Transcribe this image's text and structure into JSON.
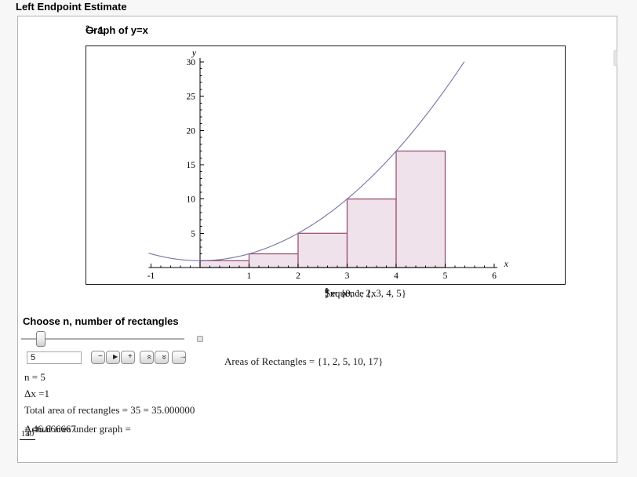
{
  "page_title": "Left Endpoint Estimate",
  "graph": {
    "title": {
      "prefix": "Graph of y=x",
      "sup": "2",
      "suffix": " + 1"
    },
    "sequence_line": [
      {
        "t": "Sequence  {x"
      },
      {
        "sub": "0"
      },
      {
        "t": ", x"
      },
      {
        "sub": "1"
      },
      {
        "t": ", ..., x"
      },
      {
        "sub": "n"
      },
      {
        "t": "} = {0, 1, 2, 3, 4, 5}"
      }
    ]
  },
  "chart_data": {
    "type": "area",
    "title": "Graph of y=x^2 + 1",
    "curve": {
      "formula": "y = x^2 + 1",
      "domain": [
        -1.05,
        5.39
      ],
      "color": "#7473a5"
    },
    "x_axis": {
      "label": "x",
      "ticks": [
        -1,
        1,
        2,
        3,
        4,
        5,
        6
      ],
      "minor_step": 0.2,
      "range": [
        -1.05,
        6.06
      ]
    },
    "y_axis": {
      "label": "y",
      "ticks": [
        5,
        10,
        15,
        20,
        25,
        30
      ],
      "minor_step": 1,
      "range": [
        0,
        30.6
      ]
    },
    "rectangles": {
      "left_endpoints": [
        0,
        1,
        2,
        3,
        4
      ],
      "width": 1,
      "heights": [
        1,
        2,
        5,
        10,
        17
      ],
      "fill": "#f0e2ea",
      "edge": "#9b5273"
    },
    "axis_color": "#000000"
  },
  "controls": {
    "heading": "Choose n, number of rectangles",
    "slider_value": 5,
    "input_value": "5",
    "buttons": [
      {
        "name": "decrement",
        "glyph": "−"
      },
      {
        "name": "play",
        "glyph": "▶"
      },
      {
        "name": "increment",
        "glyph": "+"
      },
      {
        "name": "faster",
        "glyph": "«"
      },
      {
        "name": "slower",
        "glyph": "»"
      },
      {
        "name": "direction",
        "glyph": "→"
      }
    ]
  },
  "results": {
    "areas_line": "Areas of Rectangles = {1, 2, 5, 10, 17}",
    "n_line": "n = 5",
    "dx_line": "Δx =1",
    "total_line": "Total area of rectangles = 35 = 35.000000",
    "actual": {
      "prefix": "Actual area under graph = ",
      "numerator": "140",
      "denominator": "3",
      "suffix": " = 46.666667"
    }
  }
}
